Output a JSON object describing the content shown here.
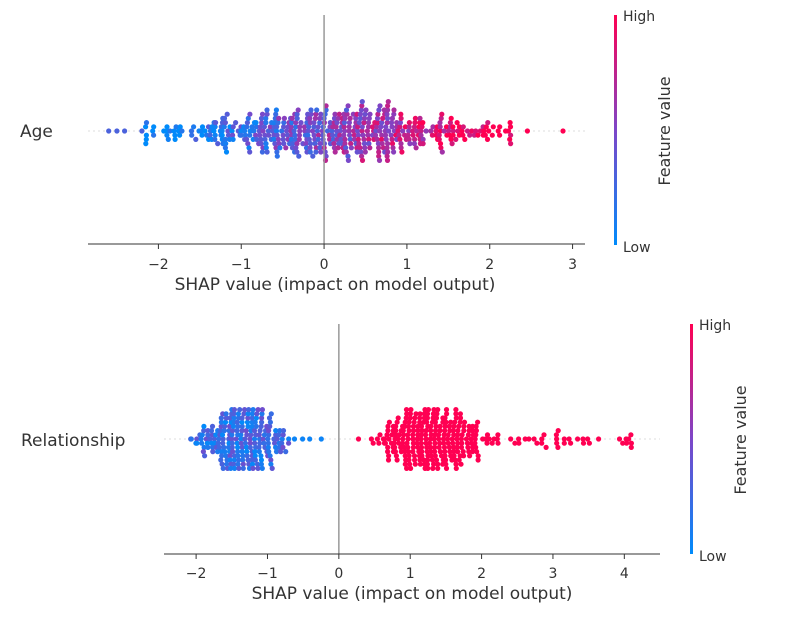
{
  "chart_data": [
    {
      "type": "scatter",
      "subtype": "shap_beeswarm",
      "feature": "Age",
      "xlabel": "SHAP value (impact on model output)",
      "xlim": [
        -2.85,
        3.15
      ],
      "xticks": [
        -2,
        -1,
        0,
        1,
        2,
        3
      ],
      "xtick_labels": [
        "−2",
        "−1",
        "0",
        "1",
        "2",
        "3"
      ],
      "colorbar": {
        "label": "Feature value",
        "high": "High",
        "low": "Low"
      },
      "shap_min": -2.6,
      "shap_max": 2.9,
      "notable_points": [
        -2.6,
        -2.5,
        -2.4,
        -2.2,
        2.45,
        2.88
      ]
    },
    {
      "type": "scatter",
      "subtype": "shap_beeswarm",
      "feature": "Relationship",
      "xlabel": "SHAP value (impact on model output)",
      "xlim": [
        -2.45,
        4.5
      ],
      "xticks": [
        -2,
        -1,
        0,
        1,
        2,
        3,
        4
      ],
      "xtick_labels": [
        "−2",
        "−1",
        "0",
        "1",
        "2",
        "3",
        "4"
      ],
      "colorbar": {
        "label": "Feature value",
        "high": "High",
        "low": "Low"
      },
      "clusters": [
        {
          "center": -1.35,
          "range": [
            -2.15,
            -0.25
          ],
          "feature_value": "low"
        },
        {
          "center": 1.3,
          "range": [
            0.15,
            4.15
          ],
          "feature_value": "high"
        }
      ]
    }
  ],
  "colors": {
    "high": "#ff0052",
    "low": "#008bfb",
    "axis": "#333333",
    "zero_line": "#999999"
  }
}
